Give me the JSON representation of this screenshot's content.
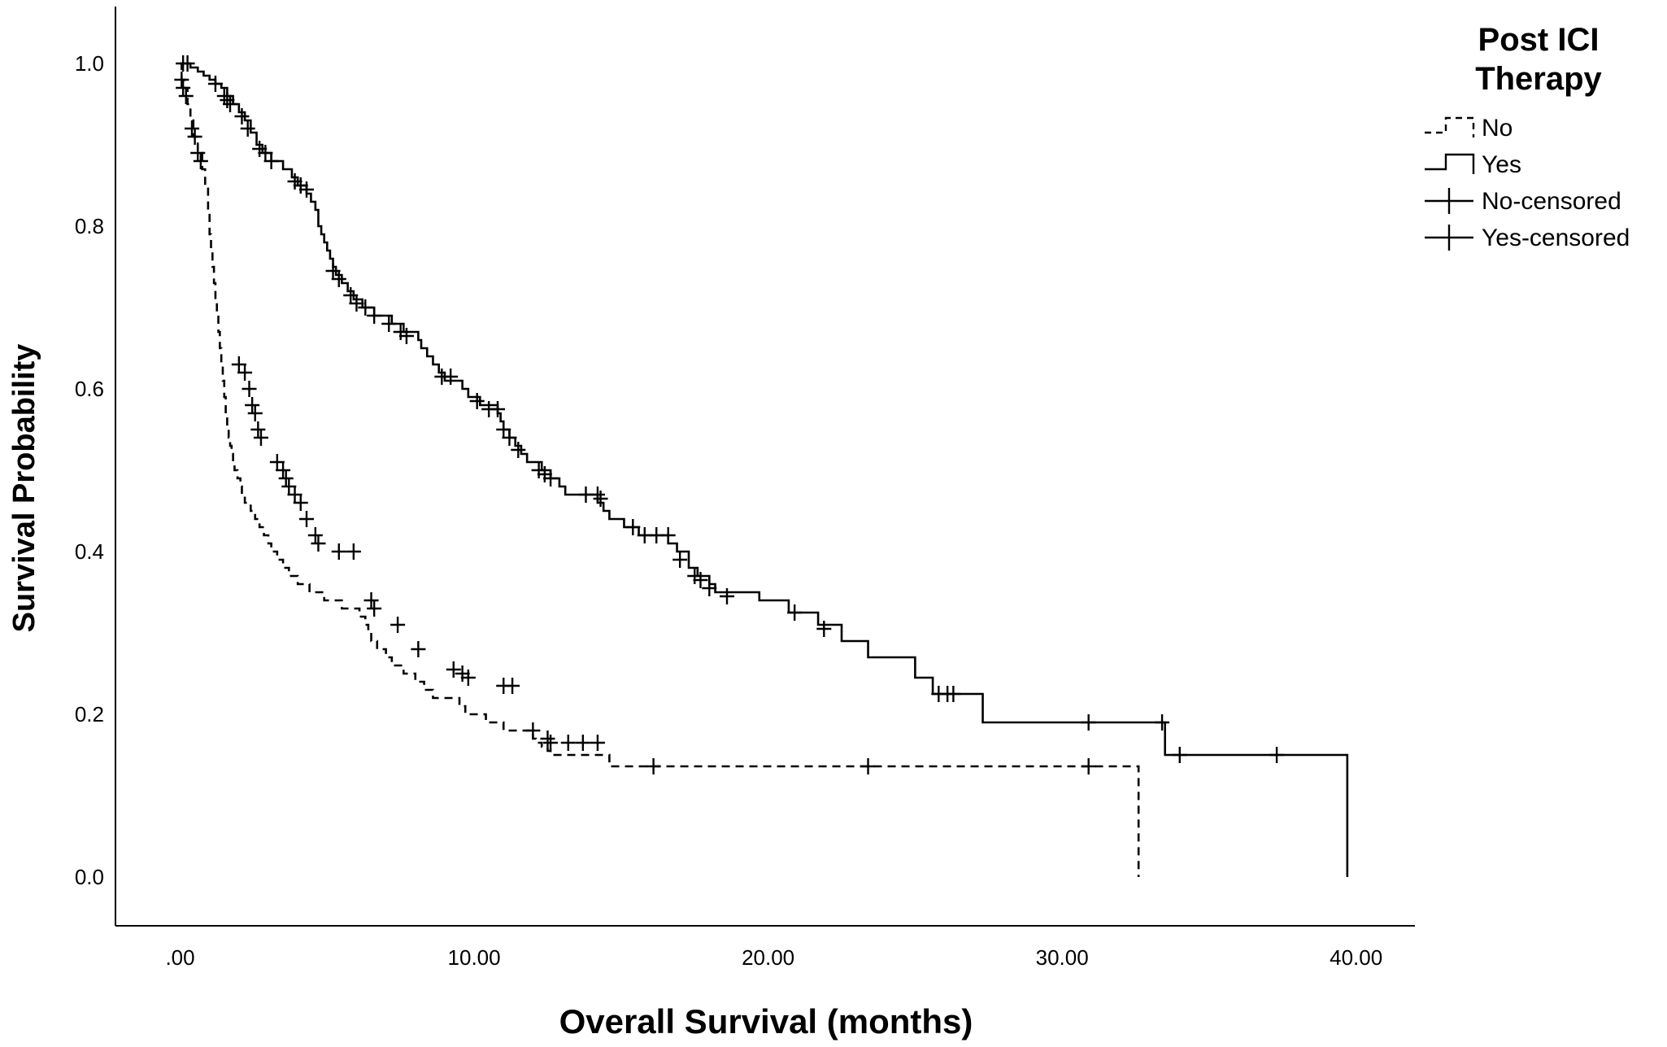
{
  "chart_data": {
    "type": "line",
    "subtype": "kaplan-meier",
    "xlabel": "Overall Survival (months)",
    "ylabel": "Survival Probability",
    "xlim": [
      -2.2,
      42
    ],
    "ylim": [
      -0.06,
      1.07
    ],
    "x_ticks": [
      0,
      10,
      20,
      30,
      40
    ],
    "x_tick_labels": [
      ".00",
      "10.00",
      "20.00",
      "30.00",
      "40.00"
    ],
    "y_ticks": [
      0,
      0.2,
      0.4,
      0.6,
      0.8,
      1.0
    ],
    "y_tick_labels": [
      "0.0",
      "0.2",
      "0.4",
      "0.6",
      "0.8",
      "1.0"
    ],
    "grid": false,
    "legend_title": "Post ICI Therapy",
    "legend_position": "top-right",
    "legend_entries": [
      "No",
      "Yes",
      "No-censored",
      "Yes-censored"
    ],
    "series": [
      {
        "name": "No",
        "line_style": "dashed",
        "color": "#000000",
        "steps": [
          [
            0,
            1.0
          ],
          [
            0.05,
            0.98
          ],
          [
            0.15,
            0.97
          ],
          [
            0.25,
            0.95
          ],
          [
            0.35,
            0.93
          ],
          [
            0.45,
            0.91
          ],
          [
            0.6,
            0.89
          ],
          [
            0.75,
            0.87
          ],
          [
            0.85,
            0.85
          ],
          [
            0.95,
            0.82
          ],
          [
            1.0,
            0.79
          ],
          [
            1.05,
            0.77
          ],
          [
            1.1,
            0.75
          ],
          [
            1.15,
            0.73
          ],
          [
            1.2,
            0.71
          ],
          [
            1.25,
            0.69
          ],
          [
            1.3,
            0.67
          ],
          [
            1.35,
            0.65
          ],
          [
            1.4,
            0.63
          ],
          [
            1.45,
            0.61
          ],
          [
            1.5,
            0.59
          ],
          [
            1.55,
            0.57
          ],
          [
            1.6,
            0.55
          ],
          [
            1.65,
            0.54
          ],
          [
            1.7,
            0.53
          ],
          [
            1.75,
            0.52
          ],
          [
            1.8,
            0.51
          ],
          [
            1.85,
            0.5
          ],
          [
            1.95,
            0.49
          ],
          [
            2.05,
            0.48
          ],
          [
            2.1,
            0.47
          ],
          [
            2.2,
            0.46
          ],
          [
            2.4,
            0.45
          ],
          [
            2.55,
            0.44
          ],
          [
            2.7,
            0.43
          ],
          [
            2.85,
            0.42
          ],
          [
            3.0,
            0.41
          ],
          [
            3.1,
            0.4
          ],
          [
            3.3,
            0.39
          ],
          [
            3.5,
            0.38
          ],
          [
            3.7,
            0.37
          ],
          [
            4.0,
            0.36
          ],
          [
            4.4,
            0.35
          ],
          [
            4.9,
            0.34
          ],
          [
            5.5,
            0.33
          ],
          [
            6.1,
            0.32
          ],
          [
            6.3,
            0.31
          ],
          [
            6.4,
            0.3
          ],
          [
            6.5,
            0.29
          ],
          [
            6.7,
            0.28
          ],
          [
            7.0,
            0.27
          ],
          [
            7.2,
            0.26
          ],
          [
            7.6,
            0.25
          ],
          [
            8.0,
            0.24
          ],
          [
            8.3,
            0.23
          ],
          [
            8.6,
            0.22
          ],
          [
            9.5,
            0.21
          ],
          [
            9.7,
            0.2
          ],
          [
            10.4,
            0.19
          ],
          [
            11.0,
            0.18
          ],
          [
            12.0,
            0.17
          ],
          [
            12.1,
            0.165
          ],
          [
            12.3,
            0.16
          ],
          [
            12.5,
            0.155
          ],
          [
            12.6,
            0.15
          ],
          [
            14.6,
            0.136
          ],
          [
            32.6,
            0.0
          ]
        ],
        "end": 32.6,
        "censored": [
          [
            0.05,
            0.98
          ],
          [
            0.1,
            0.97
          ],
          [
            0.2,
            0.96
          ],
          [
            0.4,
            0.92
          ],
          [
            0.5,
            0.91
          ],
          [
            0.6,
            0.89
          ],
          [
            0.7,
            0.88
          ],
          [
            2.0,
            0.63
          ],
          [
            2.2,
            0.62
          ],
          [
            2.35,
            0.6
          ],
          [
            2.45,
            0.58
          ],
          [
            2.55,
            0.57
          ],
          [
            2.65,
            0.55
          ],
          [
            2.75,
            0.54
          ],
          [
            3.3,
            0.51
          ],
          [
            3.5,
            0.5
          ],
          [
            3.6,
            0.49
          ],
          [
            3.7,
            0.48
          ],
          [
            3.9,
            0.47
          ],
          [
            4.1,
            0.46
          ],
          [
            4.3,
            0.44
          ],
          [
            4.6,
            0.42
          ],
          [
            4.7,
            0.41
          ],
          [
            5.4,
            0.4
          ],
          [
            5.9,
            0.4
          ],
          [
            6.5,
            0.34
          ],
          [
            6.6,
            0.33
          ],
          [
            7.4,
            0.31
          ],
          [
            8.1,
            0.28
          ],
          [
            9.3,
            0.255
          ],
          [
            9.6,
            0.25
          ],
          [
            9.8,
            0.245
          ],
          [
            11.0,
            0.235
          ],
          [
            11.3,
            0.235
          ],
          [
            12.0,
            0.18
          ],
          [
            12.5,
            0.17
          ],
          [
            12.6,
            0.165
          ],
          [
            13.2,
            0.165
          ],
          [
            13.7,
            0.165
          ],
          [
            14.2,
            0.165
          ],
          [
            16.1,
            0.136
          ],
          [
            23.4,
            0.136
          ],
          [
            30.9,
            0.136
          ]
        ]
      },
      {
        "name": "Yes",
        "line_style": "solid",
        "color": "#000000",
        "steps": [
          [
            0,
            1.0
          ],
          [
            0.35,
            0.995
          ],
          [
            0.6,
            0.99
          ],
          [
            0.8,
            0.985
          ],
          [
            1.0,
            0.98
          ],
          [
            1.2,
            0.975
          ],
          [
            1.4,
            0.97
          ],
          [
            1.6,
            0.96
          ],
          [
            1.8,
            0.95
          ],
          [
            2.0,
            0.94
          ],
          [
            2.2,
            0.93
          ],
          [
            2.4,
            0.915
          ],
          [
            2.6,
            0.9
          ],
          [
            2.8,
            0.89
          ],
          [
            3.1,
            0.88
          ],
          [
            3.5,
            0.87
          ],
          [
            3.8,
            0.86
          ],
          [
            4.0,
            0.85
          ],
          [
            4.3,
            0.84
          ],
          [
            4.45,
            0.83
          ],
          [
            4.6,
            0.82
          ],
          [
            4.7,
            0.8
          ],
          [
            4.8,
            0.79
          ],
          [
            4.9,
            0.78
          ],
          [
            5.0,
            0.77
          ],
          [
            5.1,
            0.76
          ],
          [
            5.2,
            0.75
          ],
          [
            5.3,
            0.74
          ],
          [
            5.5,
            0.73
          ],
          [
            5.7,
            0.72
          ],
          [
            5.9,
            0.71
          ],
          [
            6.2,
            0.7
          ],
          [
            6.6,
            0.69
          ],
          [
            7.2,
            0.68
          ],
          [
            7.6,
            0.67
          ],
          [
            8.1,
            0.66
          ],
          [
            8.2,
            0.65
          ],
          [
            8.4,
            0.64
          ],
          [
            8.6,
            0.63
          ],
          [
            8.8,
            0.62
          ],
          [
            9.0,
            0.61
          ],
          [
            9.6,
            0.6
          ],
          [
            9.8,
            0.59
          ],
          [
            10.2,
            0.58
          ],
          [
            10.8,
            0.57
          ],
          [
            10.9,
            0.56
          ],
          [
            11.0,
            0.55
          ],
          [
            11.2,
            0.54
          ],
          [
            11.4,
            0.53
          ],
          [
            11.6,
            0.52
          ],
          [
            11.8,
            0.51
          ],
          [
            12.3,
            0.5
          ],
          [
            12.6,
            0.49
          ],
          [
            12.9,
            0.48
          ],
          [
            13.1,
            0.47
          ],
          [
            14.2,
            0.46
          ],
          [
            14.4,
            0.45
          ],
          [
            14.6,
            0.44
          ],
          [
            15.1,
            0.43
          ],
          [
            15.6,
            0.42
          ],
          [
            16.6,
            0.41
          ],
          [
            16.9,
            0.4
          ],
          [
            17.3,
            0.38
          ],
          [
            17.6,
            0.37
          ],
          [
            18.0,
            0.36
          ],
          [
            18.2,
            0.35
          ],
          [
            19.7,
            0.34
          ],
          [
            20.7,
            0.325
          ],
          [
            21.7,
            0.31
          ],
          [
            22.5,
            0.29
          ],
          [
            23.4,
            0.27
          ],
          [
            25.0,
            0.245
          ],
          [
            25.6,
            0.225
          ],
          [
            27.3,
            0.19
          ],
          [
            33.5,
            0.15
          ],
          [
            39.7,
            0.0
          ]
        ],
        "end": 39.7,
        "censored": [
          [
            0.1,
            1.0
          ],
          [
            0.25,
            1.0
          ],
          [
            1.2,
            0.975
          ],
          [
            1.5,
            0.96
          ],
          [
            1.6,
            0.955
          ],
          [
            1.7,
            0.95
          ],
          [
            2.1,
            0.935
          ],
          [
            2.3,
            0.92
          ],
          [
            2.7,
            0.895
          ],
          [
            2.9,
            0.89
          ],
          [
            3.1,
            0.88
          ],
          [
            3.9,
            0.855
          ],
          [
            4.1,
            0.85
          ],
          [
            4.3,
            0.845
          ],
          [
            5.2,
            0.745
          ],
          [
            5.4,
            0.735
          ],
          [
            5.8,
            0.715
          ],
          [
            6.0,
            0.705
          ],
          [
            6.3,
            0.7
          ],
          [
            6.6,
            0.69
          ],
          [
            7.1,
            0.68
          ],
          [
            7.5,
            0.67
          ],
          [
            7.7,
            0.665
          ],
          [
            8.9,
            0.615
          ],
          [
            9.2,
            0.615
          ],
          [
            10.1,
            0.585
          ],
          [
            10.5,
            0.575
          ],
          [
            10.8,
            0.575
          ],
          [
            11.0,
            0.55
          ],
          [
            11.2,
            0.54
          ],
          [
            11.5,
            0.525
          ],
          [
            12.2,
            0.5
          ],
          [
            12.4,
            0.495
          ],
          [
            12.6,
            0.49
          ],
          [
            13.8,
            0.47
          ],
          [
            14.2,
            0.47
          ],
          [
            14.3,
            0.465
          ],
          [
            15.4,
            0.43
          ],
          [
            15.8,
            0.42
          ],
          [
            16.2,
            0.42
          ],
          [
            16.6,
            0.42
          ],
          [
            17.0,
            0.39
          ],
          [
            17.5,
            0.37
          ],
          [
            17.7,
            0.365
          ],
          [
            18.0,
            0.355
          ],
          [
            18.6,
            0.345
          ],
          [
            20.9,
            0.325
          ],
          [
            21.9,
            0.305
          ],
          [
            25.8,
            0.225
          ],
          [
            26.1,
            0.225
          ],
          [
            26.3,
            0.225
          ],
          [
            30.9,
            0.19
          ],
          [
            33.4,
            0.19
          ],
          [
            34.0,
            0.15
          ],
          [
            37.3,
            0.15
          ]
        ]
      }
    ]
  }
}
